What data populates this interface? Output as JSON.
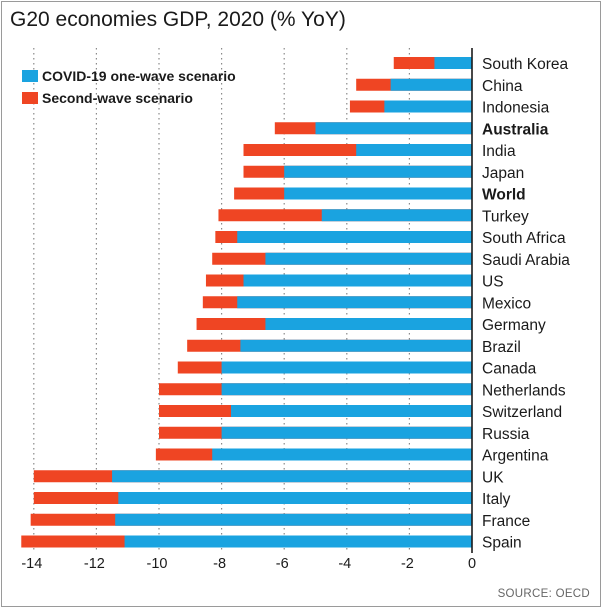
{
  "title": "G20 economies GDP, 2020 (% YoY)",
  "source": "SOURCE: OECD",
  "colors": {
    "one_wave": "#1aa3e0",
    "second_wave": "#ef4523"
  },
  "chart_data": {
    "type": "bar",
    "orientation": "horizontal",
    "title": "G20 economies GDP, 2020 (% YoY)",
    "xlim": [
      -14.4,
      0
    ],
    "xticks": [
      -14,
      -12,
      -10,
      -8,
      -6,
      -4,
      -2,
      0
    ],
    "xtick_labels": [
      "-14",
      "-12",
      "-10",
      "-8",
      "-6",
      "-4",
      "-2",
      "0"
    ],
    "grid": "vertical dotted",
    "legend_position": "top-left",
    "categories": [
      "South Korea",
      "China",
      "Indonesia",
      "Australia",
      "India",
      "Japan",
      "World",
      "Turkey",
      "South Africa",
      "Saudi Arabia",
      "US",
      "Mexico",
      "Germany",
      "Brazil",
      "Canada",
      "Netherlands",
      "Switzerland",
      "Russia",
      "Argentina",
      "UK",
      "Italy",
      "France",
      "Spain"
    ],
    "bold_categories": [
      "Australia",
      "World"
    ],
    "series": [
      {
        "name": "COVID-19 one-wave scenario",
        "values": [
          -1.2,
          -2.6,
          -2.8,
          -5.0,
          -3.7,
          -6.0,
          -6.0,
          -4.8,
          -7.5,
          -6.6,
          -7.3,
          -7.5,
          -6.6,
          -7.4,
          -8.0,
          -8.0,
          -7.7,
          -8.0,
          -8.3,
          -11.5,
          -11.3,
          -11.4,
          -11.1
        ]
      },
      {
        "name": "Second-wave scenario",
        "values": [
          -2.5,
          -3.7,
          -3.9,
          -6.3,
          -7.3,
          -7.3,
          -7.6,
          -8.1,
          -8.2,
          -8.3,
          -8.5,
          -8.6,
          -8.8,
          -9.1,
          -9.4,
          -10.0,
          -10.0,
          -10.0,
          -10.1,
          -14.0,
          -14.0,
          -14.1,
          -14.4
        ]
      }
    ]
  }
}
